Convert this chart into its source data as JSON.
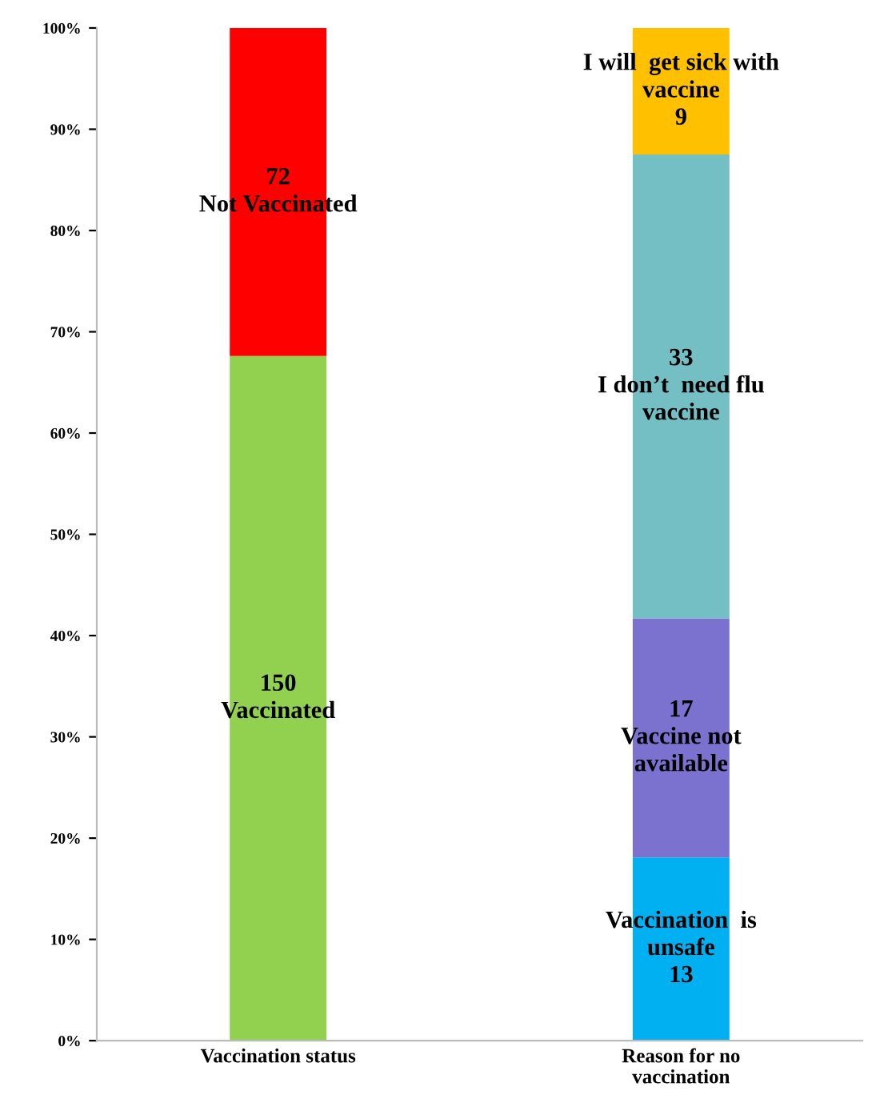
{
  "chart_data": {
    "type": "bar",
    "stacked": true,
    "categories": [
      "Vaccination status",
      "Reason for no\nvaccination"
    ],
    "ylim": [
      0,
      100
    ],
    "yticks": [
      {
        "value": 0,
        "label": "0%"
      },
      {
        "value": 10,
        "label": "10%"
      },
      {
        "value": 20,
        "label": "20%"
      },
      {
        "value": 30,
        "label": "30%"
      },
      {
        "value": 40,
        "label": "40%"
      },
      {
        "value": 50,
        "label": "50%"
      },
      {
        "value": 60,
        "label": "60%"
      },
      {
        "value": 70,
        "label": "70%"
      },
      {
        "value": 80,
        "label": "80%"
      },
      {
        "value": 90,
        "label": "90%"
      },
      {
        "value": 100,
        "label": "100%"
      }
    ],
    "grid": false,
    "legend": false,
    "series": [
      {
        "name": "150\nVaccinated",
        "color": "#92d050",
        "values": [
          67.6,
          null
        ]
      },
      {
        "name": "72\nNot Vaccinated",
        "color": "#ff0000",
        "values": [
          32.4,
          null
        ]
      },
      {
        "name": "Vaccination  is\nunsafe\n13",
        "color": "#00b0f0",
        "values": [
          null,
          18.1
        ]
      },
      {
        "name": "17\nVaccine not\navailable",
        "color": "#7b72d0",
        "values": [
          null,
          23.6
        ]
      },
      {
        "name": "33\nI don’t  need flu\nvaccine",
        "color": "#74bfc4",
        "values": [
          null,
          45.8
        ]
      },
      {
        "name": "I will  get sick with\nvaccine\n9",
        "color": "#ffc000",
        "values": [
          null,
          12.5
        ]
      }
    ]
  }
}
